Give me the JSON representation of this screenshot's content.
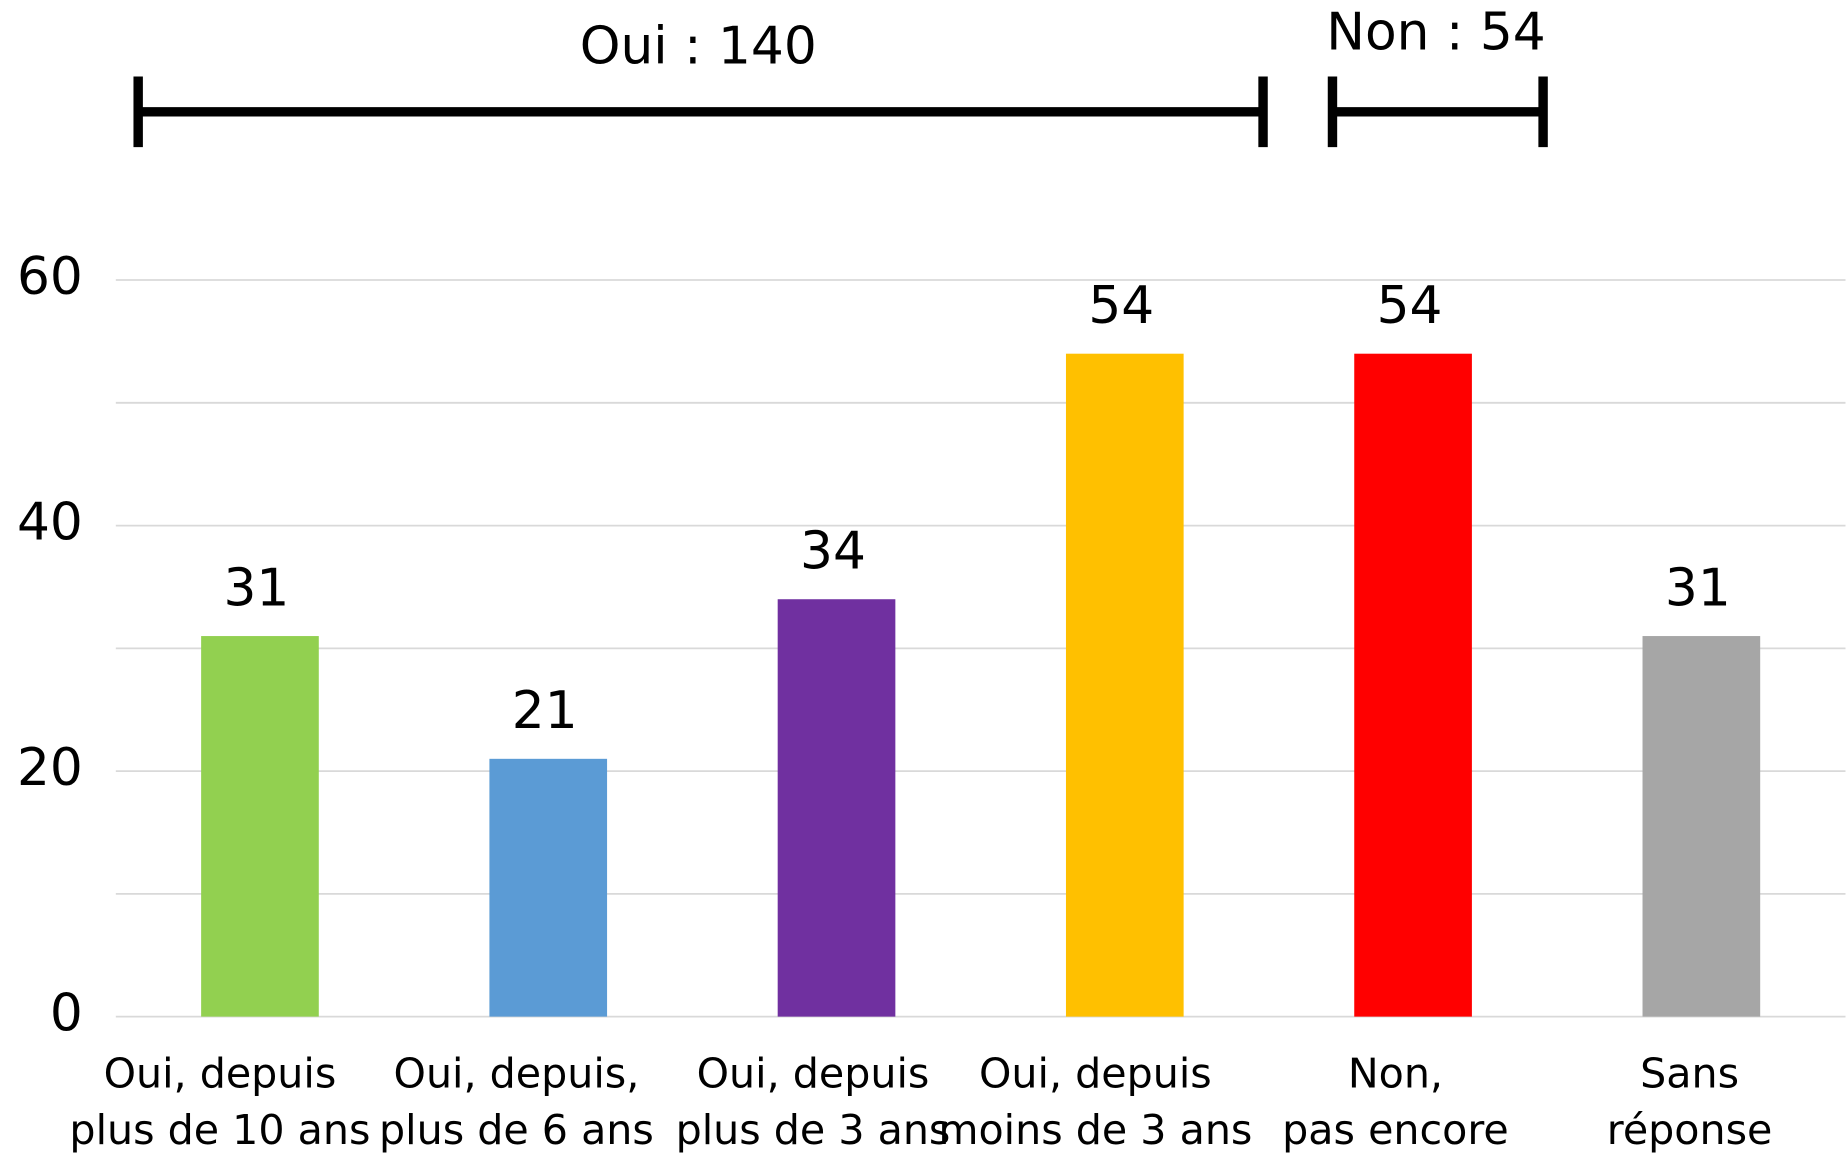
{
  "chart_data": {
    "type": "bar",
    "annotations": [
      "Oui : 140",
      "Non : 54"
    ],
    "categories": [
      [
        "Oui, depuis",
        "plus de 10 ans"
      ],
      [
        "Oui, depuis,",
        "plus de 6 ans"
      ],
      [
        "Oui, depuis",
        "plus de 3 ans"
      ],
      [
        "Oui, depuis",
        "moins de 3 ans"
      ],
      [
        "Non,",
        "pas encore"
      ],
      [
        "Sans",
        "réponse"
      ]
    ],
    "values": [
      31,
      21,
      34,
      54,
      54,
      31
    ],
    "colors": [
      "#92d050",
      "#5b9bd5",
      "#7030a0",
      "#ffc000",
      "#ff0000",
      "#a6a6a6"
    ],
    "ylim": [
      0,
      60
    ],
    "yticks": [
      0,
      20,
      40,
      60
    ],
    "minor_yticks": [
      10,
      30,
      50
    ],
    "grid": true
  }
}
